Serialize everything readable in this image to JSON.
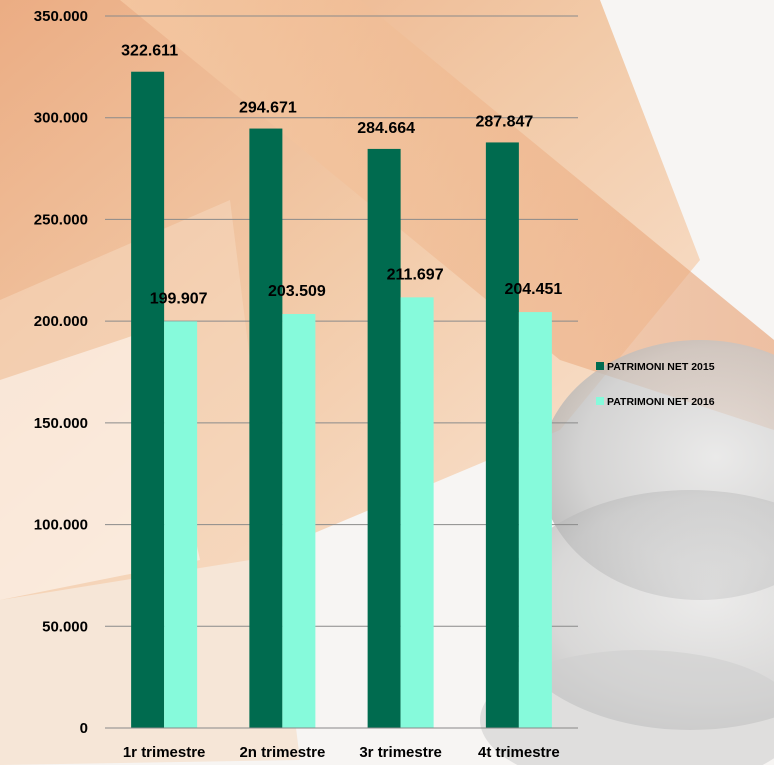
{
  "chart_data": {
    "type": "bar",
    "categories": [
      "1r trimestre",
      "2n trimestre",
      "3r trimestre",
      "4t trimestre"
    ],
    "series": [
      {
        "name": "PATRIMONI NET 2015",
        "values": [
          322611,
          294671,
          284664,
          287847
        ],
        "labels": [
          "322.611",
          "294.671",
          "284.664",
          "287.847"
        ],
        "color": "#006b4f"
      },
      {
        "name": "PATRIMONI NET 2016",
        "values": [
          199907,
          203509,
          211697,
          204451
        ],
        "labels": [
          "199.907",
          "203.509",
          "211.697",
          "204.451"
        ],
        "color": "#86fadb"
      }
    ],
    "ylim": [
      0,
      350000
    ],
    "yticks": [
      0,
      50000,
      100000,
      150000,
      200000,
      250000,
      300000,
      350000
    ],
    "ytick_labels": [
      "0",
      "50.000",
      "100.000",
      "150.000",
      "200.000",
      "250.000",
      "300.000",
      "350.000"
    ],
    "grid": true,
    "legend": "right",
    "title": "",
    "xlabel": "",
    "ylabel": ""
  }
}
